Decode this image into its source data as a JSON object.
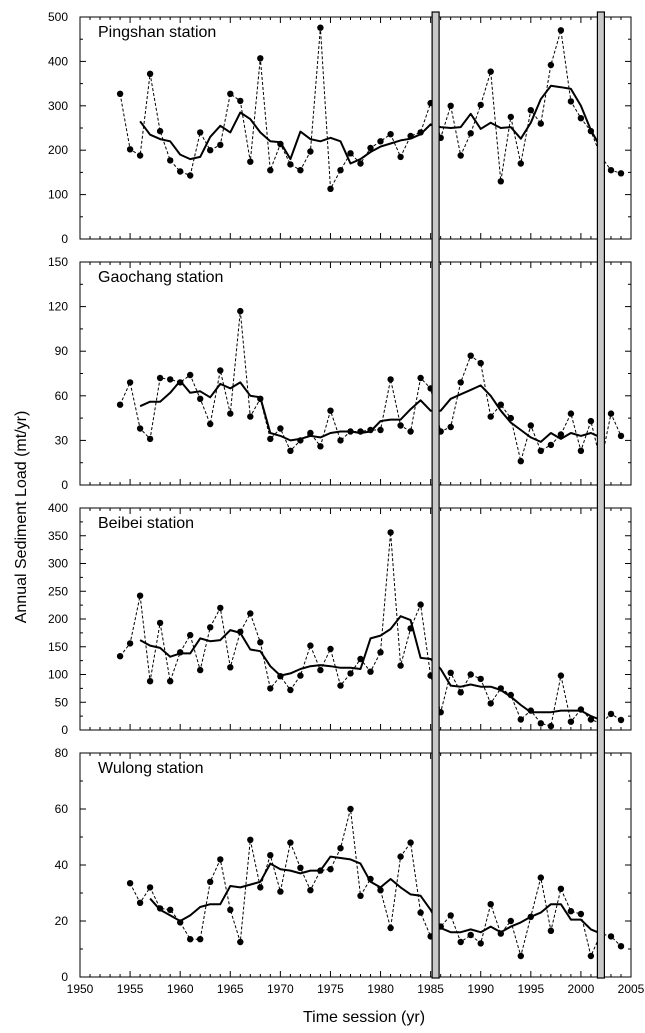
{
  "figure": {
    "ylabel": "Annual Sediment Load (mt/yr)",
    "xlabel": "Time session (yr)",
    "x_ticks": [
      "1950",
      "1955",
      "1960",
      "1965",
      "1970",
      "1975",
      "1980",
      "1985",
      "1990",
      "1995",
      "2000",
      "2005"
    ],
    "highlight_years": [
      1985.5,
      2002
    ],
    "colors": {
      "line": "#000000",
      "marker": "#000000",
      "band_fill": "#c8c8c8",
      "band_stroke": "#000000"
    }
  },
  "chart_data": [
    {
      "type": "line",
      "title": "Pingshan station",
      "xlim": [
        1950,
        2005
      ],
      "ylim": [
        0,
        500
      ],
      "y_ticks": [
        "0",
        "100",
        "200",
        "300",
        "400",
        "500"
      ],
      "series": [
        {
          "style": "dashed-markers",
          "x": [
            1954,
            1955,
            1956,
            1957,
            1958,
            1959,
            1960,
            1961,
            1962,
            1963,
            1964,
            1965,
            1966,
            1967,
            1968,
            1969,
            1970,
            1971,
            1972,
            1973,
            1974,
            1975,
            1976,
            1977,
            1978,
            1979,
            1980,
            1981,
            1982,
            1983,
            1984,
            1985,
            1986,
            1987,
            1988,
            1989,
            1990,
            1991,
            1992,
            1993,
            1994,
            1995,
            1996,
            1997,
            1998,
            1999,
            2000,
            2001,
            2002,
            2003,
            2004
          ],
          "y": [
            327,
            202,
            188,
            372,
            243,
            177,
            152,
            143,
            240,
            200,
            212,
            327,
            311,
            174,
            407,
            155,
            214,
            168,
            155,
            197,
            476,
            113,
            155,
            193,
            170,
            205,
            220,
            236,
            185,
            232,
            240,
            306,
            228,
            300,
            188,
            238,
            302,
            377,
            130,
            275,
            170,
            290,
            260,
            392,
            470,
            310,
            272,
            243,
            186,
            155,
            148
          ]
        },
        {
          "style": "solid",
          "x": [
            1956,
            1957,
            1958,
            1959,
            1960,
            1961,
            1962,
            1963,
            1964,
            1965,
            1966,
            1967,
            1968,
            1969,
            1970,
            1971,
            1972,
            1973,
            1974,
            1975,
            1976,
            1977,
            1978,
            1979,
            1980,
            1981,
            1982,
            1983,
            1984,
            1985,
            1986,
            1987,
            1988,
            1989,
            1990,
            1991,
            1992,
            1993,
            1994,
            1995,
            1996,
            1997,
            1998,
            1999,
            2000,
            2001,
            2002
          ],
          "y": [
            265,
            235,
            225,
            220,
            190,
            180,
            185,
            230,
            255,
            240,
            285,
            270,
            240,
            220,
            218,
            180,
            242,
            225,
            220,
            228,
            220,
            170,
            180,
            196,
            208,
            215,
            222,
            226,
            236,
            258,
            252,
            250,
            252,
            282,
            248,
            262,
            250,
            252,
            226,
            262,
            315,
            345,
            342,
            338,
            300,
            245,
            205
          ]
        }
      ]
    },
    {
      "type": "line",
      "title": "Gaochang station",
      "xlim": [
        1950,
        2005
      ],
      "ylim": [
        0,
        150
      ],
      "y_ticks": [
        "0",
        "30",
        "60",
        "90",
        "120",
        "150"
      ],
      "series": [
        {
          "style": "dashed-markers",
          "x": [
            1954,
            1955,
            1956,
            1957,
            1958,
            1959,
            1960,
            1961,
            1962,
            1963,
            1964,
            1965,
            1966,
            1967,
            1968,
            1969,
            1970,
            1971,
            1972,
            1973,
            1974,
            1975,
            1976,
            1977,
            1978,
            1979,
            1980,
            1981,
            1982,
            1983,
            1984,
            1985,
            1986,
            1987,
            1988,
            1989,
            1990,
            1991,
            1992,
            1993,
            1994,
            1995,
            1996,
            1997,
            1998,
            1999,
            2000,
            2001,
            2002,
            2003,
            2004
          ],
          "y": [
            54,
            69,
            38,
            31,
            72,
            71,
            69,
            74,
            58,
            41,
            77,
            48,
            117,
            46,
            58,
            31,
            38,
            23,
            30,
            35,
            26,
            50,
            30,
            36,
            36,
            37,
            37,
            71,
            40,
            36,
            72,
            65,
            36,
            39,
            69,
            87,
            82,
            46,
            54,
            45,
            16,
            40,
            23,
            27,
            34,
            48,
            23,
            43,
            15,
            48,
            33
          ]
        },
        {
          "style": "solid",
          "x": [
            1956,
            1957,
            1958,
            1959,
            1960,
            1961,
            1962,
            1963,
            1964,
            1965,
            1966,
            1967,
            1968,
            1969,
            1970,
            1971,
            1972,
            1973,
            1974,
            1975,
            1976,
            1977,
            1978,
            1979,
            1980,
            1981,
            1982,
            1983,
            1984,
            1985,
            1986,
            1987,
            1988,
            1989,
            1990,
            1991,
            1992,
            1993,
            1994,
            1995,
            1996,
            1997,
            1998,
            1999,
            2000,
            2001,
            2002
          ],
          "y": [
            53,
            56,
            56,
            62,
            70,
            62,
            63,
            59,
            68,
            65,
            69,
            60,
            59,
            35,
            33,
            30,
            31,
            33,
            32,
            35,
            36,
            36,
            35,
            36,
            43,
            44,
            44,
            51,
            57,
            50,
            50,
            58,
            61,
            64,
            67,
            60,
            50,
            42,
            37,
            32,
            29,
            35,
            31,
            35,
            33,
            35,
            32
          ]
        }
      ]
    },
    {
      "type": "line",
      "title": "Beibei station",
      "xlim": [
        1950,
        2005
      ],
      "ylim": [
        0,
        400
      ],
      "y_ticks": [
        "0",
        "50",
        "100",
        "150",
        "200",
        "250",
        "300",
        "350",
        "400"
      ],
      "series": [
        {
          "style": "dashed-markers",
          "x": [
            1954,
            1955,
            1956,
            1957,
            1958,
            1959,
            1960,
            1961,
            1962,
            1963,
            1964,
            1965,
            1966,
            1967,
            1968,
            1969,
            1970,
            1971,
            1972,
            1973,
            1974,
            1975,
            1976,
            1977,
            1978,
            1979,
            1980,
            1981,
            1982,
            1983,
            1984,
            1985,
            1986,
            1987,
            1988,
            1989,
            1990,
            1991,
            1992,
            1993,
            1994,
            1995,
            1996,
            1997,
            1998,
            1999,
            2000,
            2001,
            2002,
            2003,
            2004
          ],
          "y": [
            133,
            156,
            242,
            88,
            193,
            88,
            140,
            171,
            108,
            185,
            220,
            113,
            177,
            210,
            158,
            75,
            97,
            72,
            98,
            152,
            108,
            146,
            80,
            102,
            128,
            105,
            140,
            356,
            116,
            183,
            226,
            98,
            32,
            103,
            68,
            100,
            92,
            48,
            75,
            63,
            19,
            35,
            12,
            7,
            98,
            15,
            37,
            19,
            12,
            29,
            18
          ]
        },
        {
          "style": "solid",
          "x": [
            1956,
            1957,
            1958,
            1959,
            1960,
            1961,
            1962,
            1963,
            1964,
            1965,
            1966,
            1967,
            1968,
            1969,
            1970,
            1971,
            1972,
            1973,
            1974,
            1975,
            1976,
            1977,
            1978,
            1979,
            1980,
            1981,
            1982,
            1983,
            1984,
            1985,
            1986,
            1987,
            1988,
            1989,
            1990,
            1991,
            1992,
            1993,
            1994,
            1995,
            1996,
            1997,
            1998,
            1999,
            2000,
            2001,
            2002
          ],
          "y": [
            162,
            152,
            148,
            132,
            138,
            138,
            165,
            160,
            162,
            180,
            175,
            145,
            142,
            115,
            98,
            102,
            110,
            115,
            117,
            115,
            112,
            112,
            110,
            165,
            170,
            182,
            205,
            198,
            130,
            128,
            110,
            80,
            78,
            82,
            78,
            78,
            72,
            60,
            45,
            32,
            32,
            32,
            35,
            35,
            35,
            25,
            18
          ]
        }
      ]
    },
    {
      "type": "line",
      "title": "Wulong station",
      "xlim": [
        1950,
        2005
      ],
      "ylim": [
        0,
        80
      ],
      "y_ticks": [
        "0",
        "20",
        "40",
        "60",
        "80"
      ],
      "series": [
        {
          "style": "dashed-markers",
          "x": [
            1955,
            1956,
            1957,
            1958,
            1959,
            1960,
            1961,
            1962,
            1963,
            1964,
            1965,
            1966,
            1967,
            1968,
            1969,
            1970,
            1971,
            1972,
            1973,
            1974,
            1975,
            1976,
            1977,
            1978,
            1979,
            1980,
            1981,
            1982,
            1983,
            1984,
            1985,
            1986,
            1987,
            1988,
            1989,
            1990,
            1991,
            1992,
            1993,
            1994,
            1995,
            1996,
            1997,
            1998,
            1999,
            2000,
            2001,
            2002,
            2003,
            2004
          ],
          "y": [
            33.5,
            26.5,
            32,
            24.5,
            24,
            19.5,
            13.5,
            13.5,
            34,
            42,
            24,
            12.5,
            49,
            32,
            43.5,
            30.5,
            48,
            39,
            31,
            38,
            38.5,
            46,
            60,
            29,
            35,
            31,
            17.5,
            43,
            48,
            23,
            14.5,
            18,
            22,
            12.5,
            15,
            12,
            26,
            15.5,
            20,
            7.5,
            21.5,
            35.5,
            16.5,
            31.5,
            23.5,
            22.5,
            7.5,
            15.5,
            14.5,
            11
          ]
        },
        {
          "style": "solid",
          "x": [
            1957,
            1958,
            1959,
            1960,
            1961,
            1962,
            1963,
            1964,
            1965,
            1966,
            1967,
            1968,
            1969,
            1970,
            1971,
            1972,
            1973,
            1974,
            1975,
            1976,
            1977,
            1978,
            1979,
            1980,
            1981,
            1982,
            1983,
            1984,
            1985,
            1986,
            1987,
            1988,
            1989,
            1990,
            1991,
            1992,
            1993,
            1994,
            1995,
            1996,
            1997,
            1998,
            1999,
            2000,
            2001,
            2002
          ],
          "y": [
            28,
            24,
            22,
            20,
            22,
            25,
            26,
            26,
            32.5,
            32,
            33,
            34,
            40.5,
            38.5,
            38,
            37,
            38,
            38,
            43,
            42.5,
            42,
            40.5,
            34,
            32,
            35,
            32,
            29.5,
            29,
            24,
            17.5,
            16,
            16,
            17,
            16,
            18,
            16,
            18,
            19.5,
            21.5,
            23,
            26,
            26,
            20.5,
            20.5,
            17,
            15.5
          ]
        }
      ]
    }
  ]
}
